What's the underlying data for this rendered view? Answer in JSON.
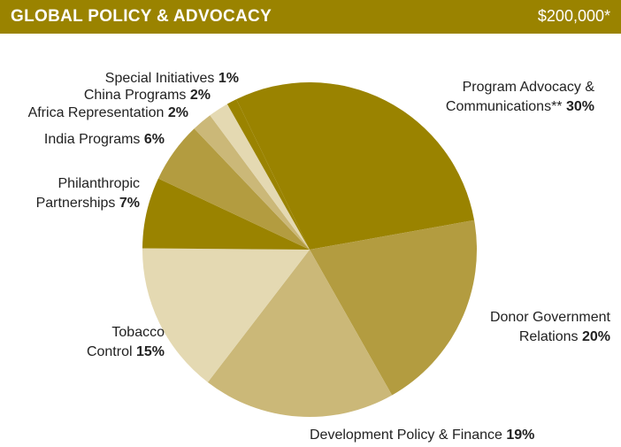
{
  "chart_data": {
    "type": "pie",
    "title": "GLOBAL POLICY & ADVOCACY",
    "subtitle": "$200,000*",
    "categories": [
      "Program Advocacy & Communications**",
      "Donor Government Relations",
      "Development Policy & Finance",
      "Tobacco Control",
      "Philanthropic Partnerships",
      "India Programs",
      "Africa Representation",
      "China Programs",
      "Special Initiatives"
    ],
    "values": [
      30,
      20,
      19,
      15,
      7,
      6,
      2,
      2,
      1
    ],
    "value_labels": [
      "30%",
      "20%",
      "19%",
      "15%",
      "7%",
      "6%",
      "2%",
      "2%",
      "1%"
    ],
    "colors": [
      "#9a8300",
      "#b39c40",
      "#cbb878",
      "#e4d9b2",
      "#9a8300",
      "#b39c40",
      "#cbb878",
      "#e4d9b2",
      "#9a8300"
    ]
  }
}
